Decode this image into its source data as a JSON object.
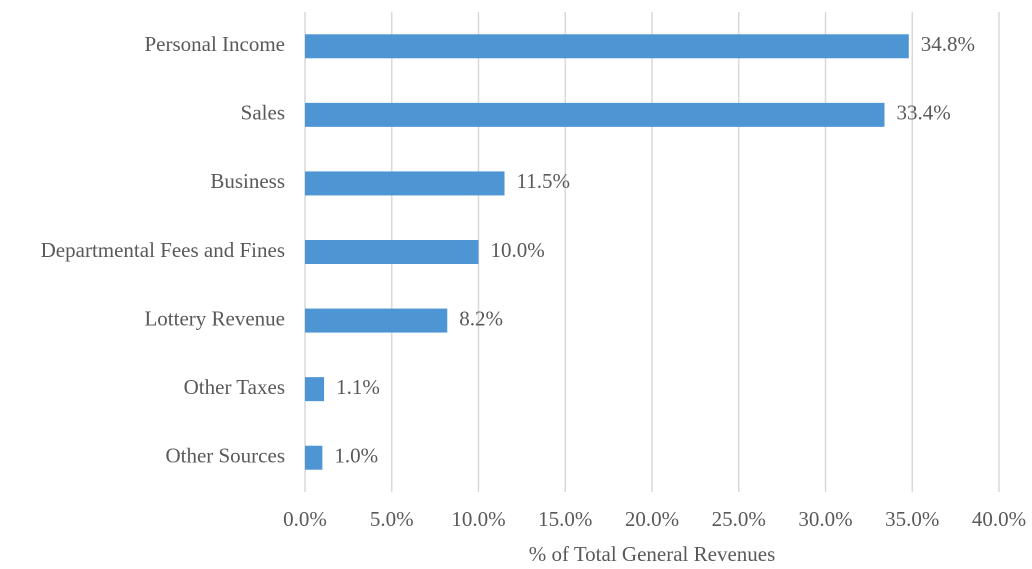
{
  "chart_data": {
    "type": "bar",
    "orientation": "horizontal",
    "xlabel": "% of Total General Revenues",
    "categories": [
      "Personal Income",
      "Sales",
      "Business",
      "Departmental Fees and Fines",
      "Lottery Revenue",
      "Other Taxes",
      "Other Sources"
    ],
    "values": [
      34.8,
      33.4,
      11.5,
      10.0,
      8.2,
      1.1,
      1.0
    ],
    "value_labels": [
      "34.8%",
      "33.4%",
      "11.5%",
      "10.0%",
      "8.2%",
      "1.1%",
      "1.0%"
    ],
    "color": "#4e95d3",
    "xlim": [
      0,
      40
    ],
    "xticks": [
      {
        "value": 0,
        "label": "0.0%"
      },
      {
        "value": 5,
        "label": "5.0%"
      },
      {
        "value": 10,
        "label": "10.0%"
      },
      {
        "value": 15,
        "label": "15.0%"
      },
      {
        "value": 20,
        "label": "20.0%"
      },
      {
        "value": 25,
        "label": "25.0%"
      },
      {
        "value": 30,
        "label": "30.0%"
      },
      {
        "value": 35,
        "label": "35.0%"
      },
      {
        "value": 40,
        "label": "40.0%"
      }
    ],
    "grid": true
  }
}
